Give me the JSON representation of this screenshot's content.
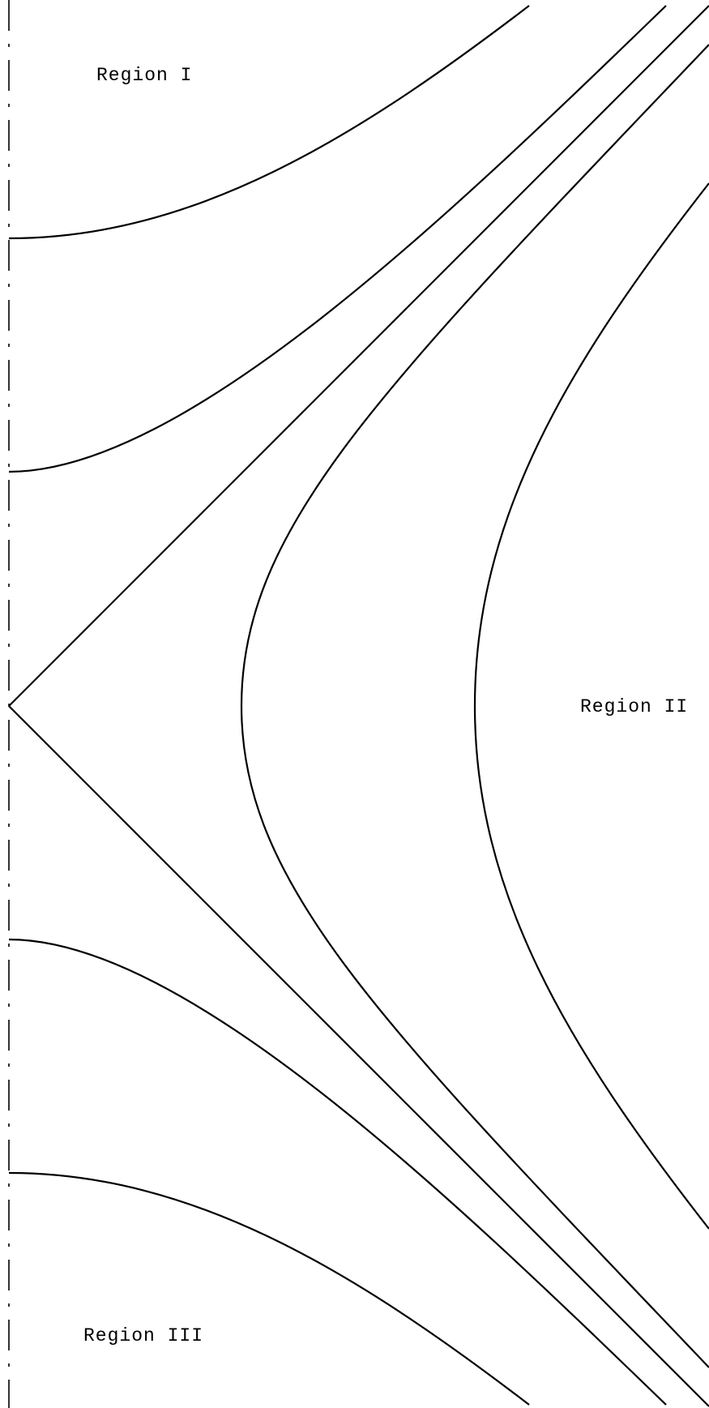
{
  "labels": {
    "region_1": "Region I",
    "region_2": "Region II",
    "region_3": "Region III"
  },
  "colors": {
    "stroke": "#000000",
    "background": "#ffffff"
  }
}
